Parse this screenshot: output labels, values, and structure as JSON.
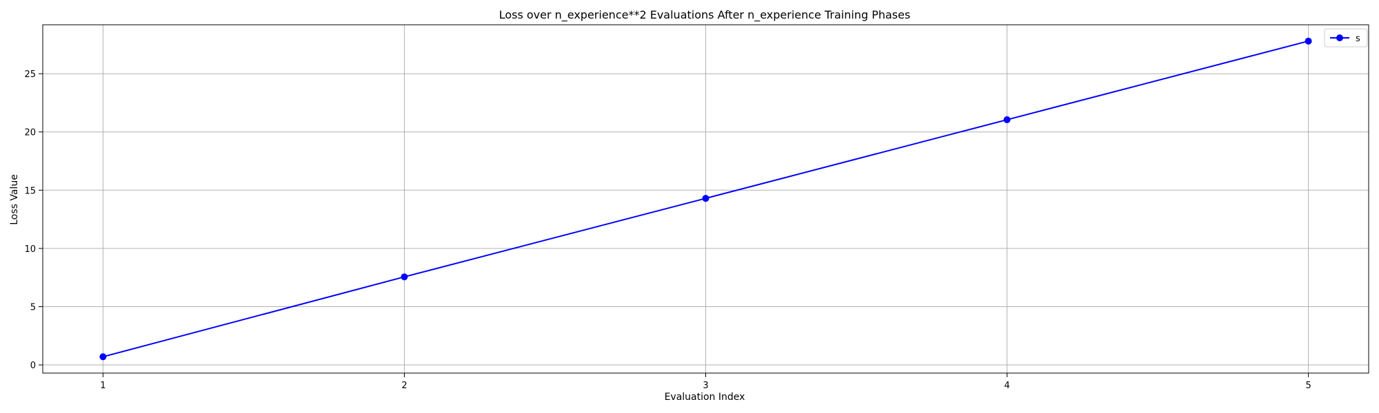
{
  "chart_data": {
    "type": "line",
    "title": "Loss over n_experience**2 Evaluations After n_experience Training Phases",
    "xlabel": "Evaluation Index",
    "ylabel": "Loss Value",
    "x": [
      1,
      2,
      3,
      4,
      5
    ],
    "xticks": [
      "1",
      "2",
      "3",
      "4",
      "5"
    ],
    "xlim": [
      0.8,
      5.2
    ],
    "ylim": [
      -0.7,
      29.2
    ],
    "yticks": [
      "0",
      "5",
      "10",
      "15",
      "20",
      "25"
    ],
    "grid": true,
    "legend_position": "top-right",
    "series": [
      {
        "name": "s",
        "color": "#0000ff",
        "marker": "circle",
        "values": [
          0.7,
          7.56,
          14.3,
          21.05,
          27.8
        ]
      }
    ]
  }
}
